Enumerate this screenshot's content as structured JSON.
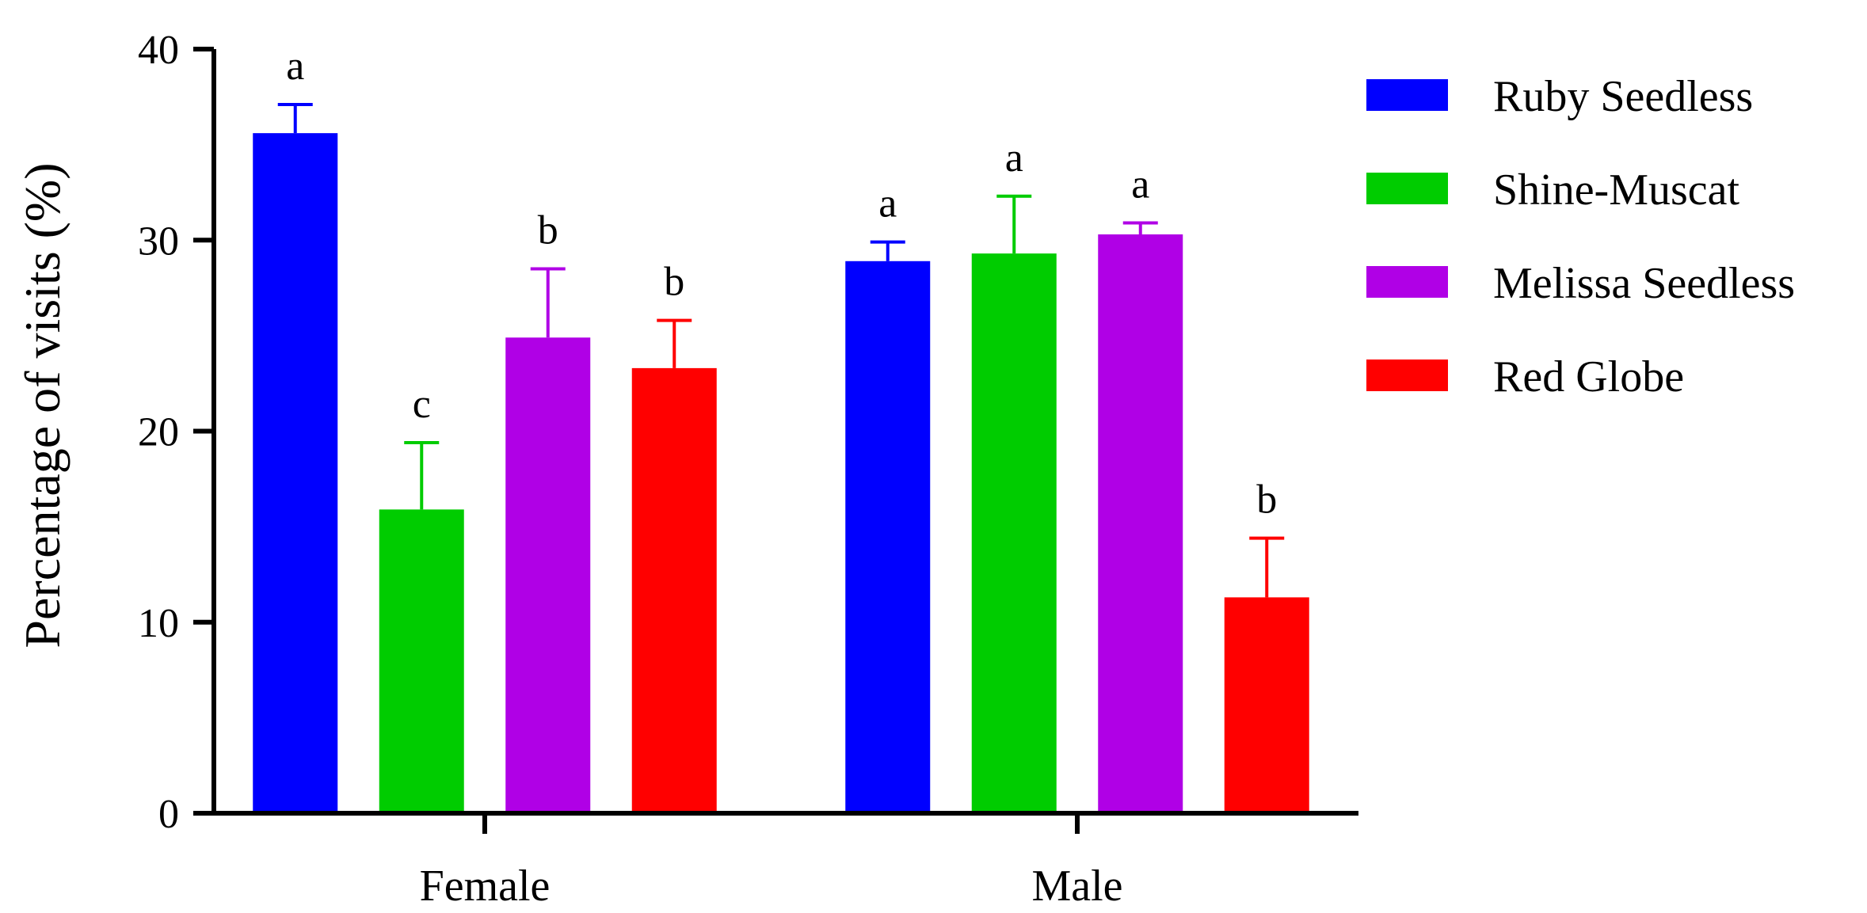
{
  "chart_data": {
    "type": "bar",
    "title": "",
    "xlabel": "",
    "ylabel": "Percentage of visits (%)",
    "ylim": [
      0,
      40
    ],
    "yticks": [
      0,
      10,
      20,
      30,
      40
    ],
    "grid": false,
    "legend_position": "right",
    "categories": [
      "Female",
      "Male"
    ],
    "series": [
      {
        "name": "Ruby Seedless",
        "color": "#0000ff",
        "values": [
          35.6,
          28.9
        ],
        "errors": [
          1.5,
          1.0
        ],
        "significance": [
          "a",
          "a"
        ]
      },
      {
        "name": "Shine-Muscat",
        "color": "#00cc00",
        "values": [
          15.9,
          29.3
        ],
        "errors": [
          3.5,
          3.0
        ],
        "significance": [
          "c",
          "a"
        ]
      },
      {
        "name": "Melissa Seedless",
        "color": "#b000e6",
        "values": [
          24.9,
          30.3
        ],
        "errors": [
          3.6,
          0.6
        ],
        "significance": [
          "b",
          "a"
        ]
      },
      {
        "name": "Red Globe",
        "color": "#ff0000",
        "values": [
          23.3,
          11.3
        ],
        "errors": [
          2.5,
          3.1
        ],
        "significance": [
          "b",
          "b"
        ]
      }
    ]
  }
}
